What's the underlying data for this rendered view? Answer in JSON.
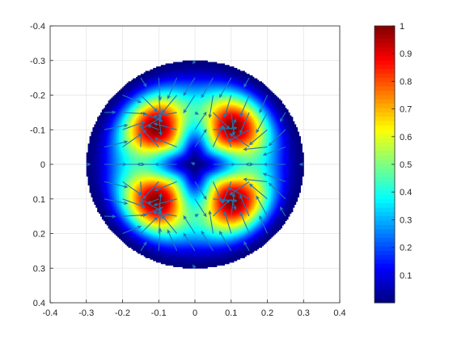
{
  "chart_data": {
    "type": "heatmap",
    "subtype": "circular heatmap with quiver (vector field) overlay",
    "title": "",
    "xlabel": "",
    "ylabel": "",
    "xlim": [
      -0.4,
      0.4
    ],
    "ylim": [
      -0.4,
      0.4
    ],
    "y_axis_direction": "reversed (top = -0.4, bottom = 0.4)",
    "x_ticks": [
      "-0.4",
      "-0.3",
      "-0.2",
      "-0.1",
      "0",
      "0.1",
      "0.2",
      "0.3",
      "0.4"
    ],
    "y_ticks": [
      "-0.4",
      "-0.3",
      "-0.2",
      "-0.1",
      "0",
      "0.1",
      "0.2",
      "0.3",
      "0.4"
    ],
    "grid": true,
    "colormap": "jet",
    "clim": [
      0,
      1
    ],
    "colorbar": {
      "position": "right",
      "ticks": [
        "0.1",
        "0.2",
        "0.3",
        "0.4",
        "0.5",
        "0.6",
        "0.7",
        "0.8",
        "0.9",
        "1"
      ]
    },
    "field": {
      "domain_radius": 0.3,
      "minima": [
        [
          0,
          0
        ],
        [
          0,
          -0.3
        ],
        [
          0,
          0.3
        ],
        [
          -0.3,
          0
        ],
        [
          0.3,
          0
        ]
      ],
      "maxima": [
        [
          -0.16,
          -0.17
        ],
        [
          0.16,
          -0.17
        ],
        [
          -0.16,
          0.17
        ],
        [
          0.16,
          0.17
        ]
      ]
    },
    "quiver_color": "#1f77b4",
    "quiver": {
      "grid_step": 0.05,
      "max_arrow_length": 0.065,
      "direction": "points away from field minima, rotating across quadrants"
    }
  }
}
